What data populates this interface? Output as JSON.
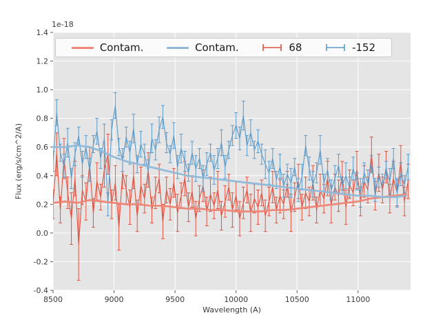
{
  "chart_data": {
    "type": "line",
    "title": "",
    "xlabel": "Wavelength (A)",
    "ylabel": "Flux (erg/s/cm^2/A)",
    "offset_text": "1e-18",
    "xlim": [
      8500,
      11430
    ],
    "ylim": [
      -0.4,
      1.4
    ],
    "x_ticks": [
      8500,
      9000,
      9500,
      10000,
      10500,
      11000
    ],
    "y_ticks": [
      -0.4,
      -0.2,
      0.0,
      0.2,
      0.4,
      0.6,
      0.8,
      1.0,
      1.2,
      1.4
    ],
    "grid": true,
    "legend_position": "upper center, horizontal, 4 columns",
    "colors": {
      "plot_bg": "#e5e5e5",
      "grid": "#ffffff",
      "tick": "#555555",
      "text": "#3a3a3a",
      "contam_red": "#ee8576",
      "contam_blue": "#8fb8d8",
      "series_red": "#e0513f",
      "series_blue": "#5b9ac9"
    },
    "legend": {
      "items": [
        {
          "label": "Contam.",
          "series": 0,
          "sample": "line"
        },
        {
          "label": "Contam.",
          "series": 1,
          "sample": "line"
        },
        {
          "label": "68",
          "series": 2,
          "sample": "errorbar"
        },
        {
          "label": "-152",
          "series": 3,
          "sample": "errorbar"
        }
      ]
    },
    "x_contam": [
      8500,
      8600,
      8700,
      8800,
      8900,
      9000,
      9100,
      9200,
      9300,
      9400,
      9500,
      9600,
      9700,
      9800,
      9900,
      10000,
      10100,
      10200,
      10300,
      10400,
      10500,
      10600,
      10700,
      10800,
      10900,
      11000,
      11100,
      11200,
      11300,
      11400
    ],
    "x_main": [
      8500,
      8530,
      8560,
      8590,
      8620,
      8650,
      8680,
      8710,
      8740,
      8770,
      8800,
      8830,
      8860,
      8890,
      8920,
      8950,
      8980,
      9010,
      9040,
      9070,
      9100,
      9130,
      9160,
      9190,
      9220,
      9250,
      9280,
      9310,
      9340,
      9370,
      9400,
      9430,
      9460,
      9490,
      9520,
      9550,
      9580,
      9610,
      9640,
      9670,
      9700,
      9730,
      9760,
      9790,
      9820,
      9850,
      9880,
      9910,
      9940,
      9970,
      10000,
      10030,
      10060,
      10090,
      10120,
      10150,
      10180,
      10210,
      10240,
      10270,
      10300,
      10330,
      10360,
      10390,
      10420,
      10450,
      10480,
      10510,
      10540,
      10570,
      10600,
      10630,
      10660,
      10690,
      10720,
      10750,
      10780,
      10810,
      10840,
      10870,
      10900,
      10930,
      10960,
      10990,
      11020,
      11050,
      11080,
      11110,
      11140,
      11170,
      11200,
      11230,
      11260,
      11290,
      11320,
      11350,
      11380,
      11410
    ],
    "series": [
      {
        "type": "line",
        "color_key": "contam_red",
        "x_ref": "x_contam",
        "y": [
          0.21,
          0.22,
          0.21,
          0.23,
          0.22,
          0.21,
          0.2,
          0.2,
          0.19,
          0.19,
          0.18,
          0.17,
          0.17,
          0.16,
          0.16,
          0.15,
          0.15,
          0.15,
          0.16,
          0.16,
          0.17,
          0.18,
          0.19,
          0.2,
          0.21,
          0.22,
          0.24,
          0.25,
          0.26,
          0.27
        ]
      },
      {
        "type": "line",
        "color_key": "contam_blue",
        "x_ref": "x_contam",
        "y": [
          0.6,
          0.6,
          0.61,
          0.6,
          0.57,
          0.53,
          0.5,
          0.48,
          0.46,
          0.44,
          0.42,
          0.4,
          0.39,
          0.38,
          0.37,
          0.36,
          0.35,
          0.34,
          0.33,
          0.32,
          0.31,
          0.3,
          0.29,
          0.28,
          0.27,
          0.26,
          0.26,
          0.25,
          0.25,
          0.26
        ]
      },
      {
        "type": "errorbar",
        "color_key": "series_red",
        "x_ref": "x_main",
        "y": [
          0.2,
          0.55,
          0.16,
          0.52,
          0.28,
          0.1,
          0.38,
          -0.08,
          0.3,
          0.22,
          0.48,
          0.14,
          0.36,
          0.25,
          0.44,
          0.55,
          0.2,
          0.35,
          0.04,
          0.42,
          0.3,
          0.18,
          0.4,
          0.12,
          0.33,
          0.24,
          0.44,
          0.16,
          0.28,
          0.38,
          0.08,
          0.3,
          0.2,
          0.35,
          0.14,
          0.26,
          0.38,
          0.18,
          0.29,
          0.1,
          0.24,
          0.33,
          0.15,
          0.27,
          0.19,
          0.3,
          0.12,
          0.22,
          0.32,
          0.16,
          0.26,
          0.1,
          0.21,
          0.3,
          0.14,
          0.24,
          0.18,
          0.28,
          0.12,
          0.22,
          0.32,
          0.16,
          0.26,
          0.2,
          0.34,
          0.14,
          0.25,
          0.36,
          0.18,
          0.28,
          0.22,
          0.35,
          0.16,
          0.3,
          0.24,
          0.38,
          0.2,
          0.32,
          0.26,
          0.4,
          0.18,
          0.34,
          0.28,
          0.44,
          0.22,
          0.36,
          0.3,
          0.55,
          0.26,
          0.42,
          0.3,
          0.46,
          0.24,
          0.38,
          0.28,
          0.5,
          0.22,
          0.36
        ],
        "yerr": [
          0.1,
          0.15,
          0.09,
          0.14,
          0.11,
          0.18,
          0.12,
          0.25,
          0.1,
          0.13,
          0.12,
          0.1,
          0.13,
          0.09,
          0.12,
          0.14,
          0.1,
          0.12,
          0.16,
          0.11,
          0.1,
          0.12,
          0.09,
          0.11,
          0.13,
          0.1,
          0.12,
          0.09,
          0.11,
          0.1,
          0.12,
          0.09,
          0.11,
          0.1,
          0.13,
          0.09,
          0.12,
          0.1,
          0.11,
          0.12,
          0.09,
          0.11,
          0.1,
          0.12,
          0.09,
          0.13,
          0.1,
          0.11,
          0.09,
          0.12,
          0.1,
          0.12,
          0.11,
          0.09,
          0.13,
          0.1,
          0.12,
          0.09,
          0.11,
          0.1,
          0.11,
          0.09,
          0.12,
          0.1,
          0.09,
          0.13,
          0.1,
          0.12,
          0.09,
          0.11,
          0.1,
          0.12,
          0.09,
          0.11,
          0.1,
          0.12,
          0.13,
          0.09,
          0.11,
          0.1,
          0.12,
          0.1,
          0.09,
          0.13,
          0.1,
          0.11,
          0.09,
          0.12,
          0.1,
          0.13,
          0.09,
          0.11,
          0.1,
          0.12,
          0.09,
          0.11,
          0.1,
          0.12
        ]
      },
      {
        "type": "errorbar",
        "color_key": "series_blue",
        "x_ref": "x_main",
        "y": [
          0.5,
          0.84,
          0.56,
          0.47,
          0.63,
          0.38,
          0.55,
          0.68,
          0.48,
          0.6,
          0.44,
          0.62,
          0.71,
          0.52,
          0.66,
          0.2,
          0.72,
          0.89,
          0.6,
          0.51,
          0.67,
          0.56,
          0.73,
          0.48,
          0.62,
          0.55,
          0.43,
          0.66,
          0.58,
          0.72,
          0.81,
          0.63,
          0.55,
          0.68,
          0.46,
          0.59,
          0.5,
          0.42,
          0.56,
          0.45,
          0.52,
          0.38,
          0.48,
          0.56,
          0.44,
          0.52,
          0.63,
          0.46,
          0.58,
          0.68,
          0.75,
          0.66,
          0.82,
          0.61,
          0.7,
          0.58,
          0.64,
          0.55,
          0.48,
          0.42,
          0.52,
          0.37,
          0.46,
          0.33,
          0.41,
          0.35,
          0.46,
          0.3,
          0.39,
          0.61,
          0.45,
          0.34,
          0.42,
          0.58,
          0.35,
          0.44,
          0.3,
          0.38,
          0.47,
          0.33,
          0.4,
          0.32,
          0.45,
          0.36,
          0.28,
          0.42,
          0.35,
          0.48,
          0.3,
          0.39,
          0.33,
          0.44,
          0.36,
          0.52,
          0.28,
          0.41,
          0.34,
          0.46
        ],
        "yerr": [
          0.07,
          0.09,
          0.06,
          0.08,
          0.1,
          0.07,
          0.08,
          0.06,
          0.09,
          0.08,
          0.08,
          0.06,
          0.09,
          0.07,
          0.1,
          0.08,
          0.07,
          0.09,
          0.06,
          0.08,
          0.07,
          0.08,
          0.1,
          0.06,
          0.09,
          0.07,
          0.08,
          0.1,
          0.07,
          0.09,
          0.08,
          0.07,
          0.06,
          0.09,
          0.08,
          0.1,
          0.07,
          0.06,
          0.08,
          0.09,
          0.07,
          0.09,
          0.08,
          0.06,
          0.1,
          0.07,
          0.09,
          0.08,
          0.06,
          0.07,
          0.09,
          0.08,
          0.1,
          0.07,
          0.09,
          0.06,
          0.08,
          0.07,
          0.1,
          0.08,
          0.07,
          0.06,
          0.09,
          0.08,
          0.07,
          0.1,
          0.06,
          0.08,
          0.09,
          0.07,
          0.08,
          0.09,
          0.07,
          0.1,
          0.06,
          0.08,
          0.07,
          0.09,
          0.08,
          0.06,
          0.09,
          0.07,
          0.08,
          0.06,
          0.1,
          0.07,
          0.09,
          0.06,
          0.08,
          0.07,
          0.08,
          0.06,
          0.09,
          0.07,
          0.1,
          0.08,
          0.06,
          0.09
        ]
      }
    ]
  }
}
